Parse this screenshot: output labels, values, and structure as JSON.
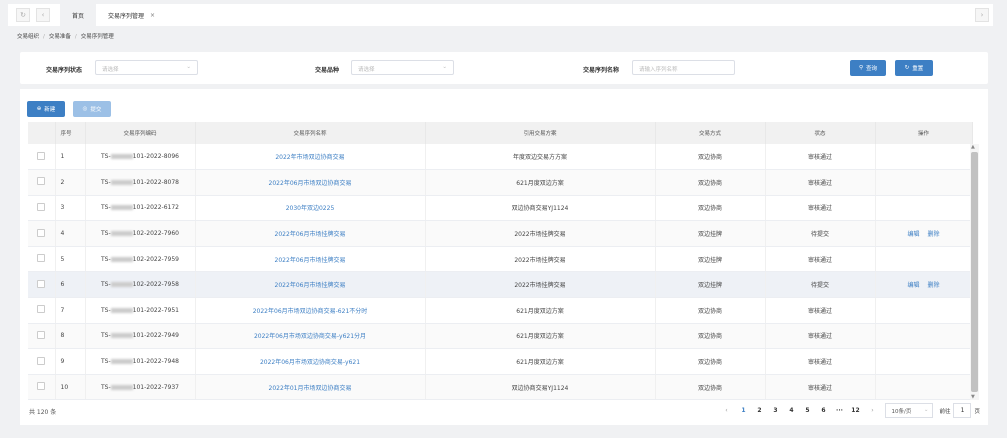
{
  "topbar": {
    "refresh_icon": "refresh-icon",
    "back_icon": "chevron-left-icon",
    "tabs": [
      {
        "label": "首页"
      },
      {
        "label": "交易序列管理",
        "closable": true
      }
    ],
    "close": "×",
    "forward_icon": "chevron-right-icon"
  },
  "breadcrumb": [
    "交易组织",
    "交易准备",
    "交易序列管理"
  ],
  "filters": {
    "status": {
      "label": "交易序列状态",
      "placeholder": "请选择"
    },
    "variety": {
      "label": "交易品种",
      "placeholder": "请选择"
    },
    "name": {
      "label": "交易序列名称",
      "placeholder": "请输入序列名称"
    },
    "search_label": "查询",
    "reset_label": "重置"
  },
  "toolbar": {
    "new_label": "新建",
    "submit_label": "提交"
  },
  "table": {
    "headers": [
      "序号",
      "交易序列编码",
      "交易序列名称",
      "引用交易方案",
      "交易方式",
      "状态",
      "操作"
    ],
    "rows": [
      {
        "no": "1",
        "code_prefix": "TS-",
        "code_suffix": "101-2022-8096",
        "name": "2022年市场双边协商交易",
        "scheme": "年度双边交易方方案",
        "method": "双边协商",
        "status": "审核通过",
        "ops": []
      },
      {
        "no": "2",
        "code_prefix": "TS-",
        "code_suffix": "101-2022-8078",
        "name": "2022年06月市场双边协商交易",
        "scheme": "621月度双边方案",
        "method": "双边协商",
        "status": "审核通过",
        "ops": []
      },
      {
        "no": "3",
        "code_prefix": "TS-",
        "code_suffix": "101-2022-6172",
        "name": "2030年双边0225",
        "scheme": "双边协商交易YJ1124",
        "method": "双边协商",
        "status": "审核通过",
        "ops": []
      },
      {
        "no": "4",
        "code_prefix": "TS-",
        "code_suffix": "102-2022-7960",
        "name": "2022年06月市场挂牌交易",
        "scheme": "2022市场挂牌交易",
        "method": "双边挂牌",
        "status": "待提交",
        "ops": [
          "编辑",
          "删除"
        ]
      },
      {
        "no": "5",
        "code_prefix": "TS-",
        "code_suffix": "102-2022-7959",
        "name": "2022年06月市场挂牌交易",
        "scheme": "2022市场挂牌交易",
        "method": "双边挂牌",
        "status": "审核通过",
        "ops": []
      },
      {
        "no": "6",
        "code_prefix": "TS-",
        "code_suffix": "102-2022-7958",
        "name": "2022年06月市场挂牌交易",
        "scheme": "2022市场挂牌交易",
        "method": "双边挂牌",
        "status": "待提交",
        "ops": [
          "编辑",
          "删除"
        ]
      },
      {
        "no": "7",
        "code_prefix": "TS-",
        "code_suffix": "101-2022-7951",
        "name": "2022年06月市场双边协商交易-621不分时",
        "scheme": "621月度双边方案",
        "method": "双边协商",
        "status": "审核通过",
        "ops": []
      },
      {
        "no": "8",
        "code_prefix": "TS-",
        "code_suffix": "101-2022-7949",
        "name": "2022年06月市场双边协商交易-y621分月",
        "scheme": "621月度双边方案",
        "method": "双边协商",
        "status": "审核通过",
        "ops": []
      },
      {
        "no": "9",
        "code_prefix": "TS-",
        "code_suffix": "101-2022-7948",
        "name": "2022年06月市场双边协商交易-y621",
        "scheme": "621月度双边方案",
        "method": "双边协商",
        "status": "审核通过",
        "ops": []
      },
      {
        "no": "10",
        "code_prefix": "TS-",
        "code_suffix": "101-2022-7937",
        "name": "2022年01月市场双边协商交易",
        "scheme": "双边协商交易YJ1124",
        "method": "双边协商",
        "status": "审核通过",
        "ops": []
      }
    ]
  },
  "pagination": {
    "total": "共 120 条",
    "pages": [
      "1",
      "2",
      "3",
      "4",
      "5",
      "6",
      "···",
      "12"
    ],
    "current": "1",
    "prev": "‹",
    "next": "›",
    "page_size": "10条/页",
    "goto_label": "前往",
    "goto_value": "1",
    "goto_suffix": "页"
  },
  "colors": {
    "primary": "#3d7fc4",
    "disabled": "#9cc0e6"
  }
}
